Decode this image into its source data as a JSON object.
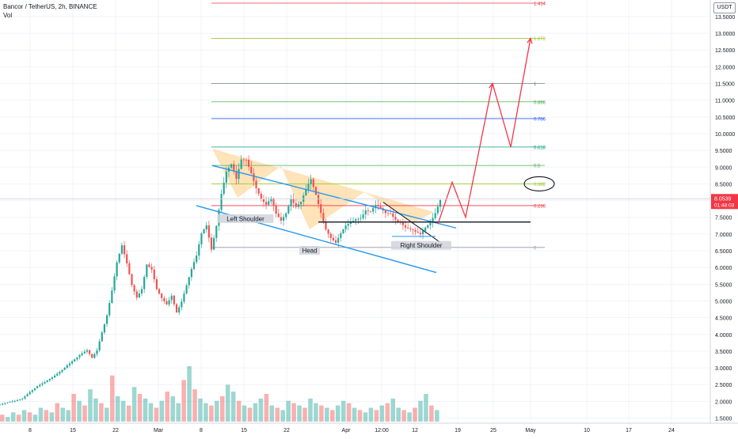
{
  "header": {
    "title": "Bancor / TetherUS, 2h, BINANCE",
    "volume_label": "Vol",
    "currency": "USDT"
  },
  "price_marker": {
    "price": "8.0539",
    "countdown": "01:48:03",
    "value": 8.0539,
    "color": "#f23645"
  },
  "chart_data": {
    "type": "candlestick",
    "ylim": [
      1.2,
      13.9
    ],
    "y_ticks": [
      1.5,
      2.0,
      2.5,
      3.0,
      3.5,
      4.0,
      4.5,
      5.0,
      5.5,
      6.0,
      6.5,
      7.0,
      7.5,
      8.0,
      8.5,
      9.0,
      9.5,
      10.0,
      10.5,
      11.0,
      11.5,
      12.0,
      12.5,
      13.0,
      13.5
    ],
    "x_ticks": [
      "8",
      "15",
      "22",
      "Mar",
      "8",
      "15",
      "22",
      "Apr",
      "12:00",
      "12",
      "19",
      "25",
      "May",
      "10",
      "17",
      "24"
    ],
    "grid": true,
    "price_path": [
      [
        0,
        1.9
      ],
      [
        3,
        1.95
      ],
      [
        6,
        2.0
      ],
      [
        9,
        2.1
      ],
      [
        12,
        2.3
      ],
      [
        15,
        2.45
      ],
      [
        18,
        2.55
      ],
      [
        21,
        2.7
      ],
      [
        24,
        2.9
      ],
      [
        27,
        3.1
      ],
      [
        30,
        3.25
      ],
      [
        33,
        3.4
      ],
      [
        35,
        3.5
      ],
      [
        37,
        3.3
      ],
      [
        39,
        3.55
      ],
      [
        41,
        4.1
      ],
      [
        43,
        4.6
      ],
      [
        45,
        5.3
      ],
      [
        47,
        6.1
      ],
      [
        49,
        6.6
      ],
      [
        51,
        6.1
      ],
      [
        53,
        5.5
      ],
      [
        55,
        5.15
      ],
      [
        57,
        5.4
      ],
      [
        59,
        6.1
      ],
      [
        61,
        5.9
      ],
      [
        63,
        5.3
      ],
      [
        65,
        5.05
      ],
      [
        67,
        4.9
      ],
      [
        69,
        5.2
      ],
      [
        71,
        4.7
      ],
      [
        73,
        5.0
      ],
      [
        75,
        5.45
      ],
      [
        77,
        5.9
      ],
      [
        79,
        6.3
      ],
      [
        81,
        7.0
      ],
      [
        83,
        7.3
      ],
      [
        85,
        6.6
      ],
      [
        87,
        7.3
      ],
      [
        89,
        8.2
      ],
      [
        91,
        8.8
      ],
      [
        93,
        9.0
      ],
      [
        95,
        8.6
      ],
      [
        97,
        9.25
      ],
      [
        99,
        9.3
      ],
      [
        101,
        8.9
      ],
      [
        103,
        8.4
      ],
      [
        105,
        8.0
      ],
      [
        107,
        7.8
      ],
      [
        109,
        8.0
      ],
      [
        111,
        7.6
      ],
      [
        113,
        7.45
      ],
      [
        115,
        7.7
      ],
      [
        117,
        8.1
      ],
      [
        119,
        7.8
      ],
      [
        121,
        7.9
      ],
      [
        123,
        8.25
      ],
      [
        125,
        8.6
      ],
      [
        127,
        8.2
      ],
      [
        129,
        7.7
      ],
      [
        131,
        7.2
      ],
      [
        133,
        6.9
      ],
      [
        135,
        6.7
      ],
      [
        137,
        6.95
      ],
      [
        139,
        7.2
      ],
      [
        141,
        7.35
      ],
      [
        143,
        7.5
      ],
      [
        145,
        7.55
      ],
      [
        147,
        7.75
      ],
      [
        149,
        7.65
      ],
      [
        151,
        7.8
      ],
      [
        153,
        7.7
      ],
      [
        155,
        7.6
      ],
      [
        157,
        7.65
      ],
      [
        159,
        7.5
      ],
      [
        161,
        7.4
      ],
      [
        163,
        7.2
      ],
      [
        165,
        7.1
      ],
      [
        167,
        7.0
      ],
      [
        169,
        6.95
      ],
      [
        171,
        7.2
      ],
      [
        173,
        7.4
      ],
      [
        175,
        7.7
      ],
      [
        177,
        8.05
      ]
    ],
    "candle_x_range": [
      0,
      177
    ],
    "volume": [
      3,
      2,
      4,
      3,
      5,
      4,
      3,
      6,
      5,
      4,
      8,
      6,
      5,
      12,
      9,
      7,
      14,
      10,
      8,
      6,
      20,
      11,
      9,
      7,
      15,
      12,
      10,
      8,
      6,
      9,
      13,
      11,
      8,
      18,
      24,
      14,
      10,
      8,
      7,
      9,
      11,
      16,
      13,
      9,
      7,
      6,
      8,
      10,
      12,
      7,
      6,
      5,
      9,
      8,
      7,
      6,
      10,
      8,
      7,
      6,
      5,
      7,
      9,
      8,
      6,
      5,
      4,
      6,
      5,
      7,
      8,
      10,
      6,
      5,
      4,
      6,
      9,
      12,
      7,
      5
    ],
    "annotations": {
      "labels": [
        {
          "text": "Left Shoulder",
          "x": 310,
          "y": 7.45
        },
        {
          "text": "Head",
          "x": 391,
          "y": 6.5
        },
        {
          "text": "Right Shoulder",
          "x": 532,
          "y": 6.65
        }
      ],
      "fib_levels": [
        {
          "label": "0",
          "price": 6.6,
          "color": "#9598a1"
        },
        {
          "label": "0.236",
          "price": 7.85,
          "color": "#f23645"
        },
        {
          "label": "0.382",
          "price": 8.5,
          "color": "#9fc82b"
        },
        {
          "label": "0.5",
          "price": 9.05,
          "color": "#4caf50"
        },
        {
          "label": "0.618",
          "price": 9.6,
          "color": "#089981"
        },
        {
          "label": "0.786",
          "price": 10.45,
          "color": "#2962ff"
        },
        {
          "label": "0.886",
          "price": 10.95,
          "color": "#4caf50"
        },
        {
          "label": "1",
          "price": 11.5,
          "color": "#787b86"
        },
        {
          "label": "1.272",
          "price": 12.85,
          "color": "#9fc82b"
        },
        {
          "label": "1.414",
          "price": 13.9,
          "color": "#f23645"
        }
      ],
      "projection_path": [
        [
          553,
          7.3
        ],
        [
          571,
          8.55
        ],
        [
          588,
          7.5
        ],
        [
          622,
          11.5
        ],
        [
          645,
          9.6
        ],
        [
          670,
          12.85
        ]
      ],
      "colors": {
        "up": "#26a69a",
        "down": "#ef5350",
        "channel": "#2196f3",
        "fill": "#ffcc80",
        "projection": "#f23645",
        "support": "#131722"
      }
    }
  }
}
